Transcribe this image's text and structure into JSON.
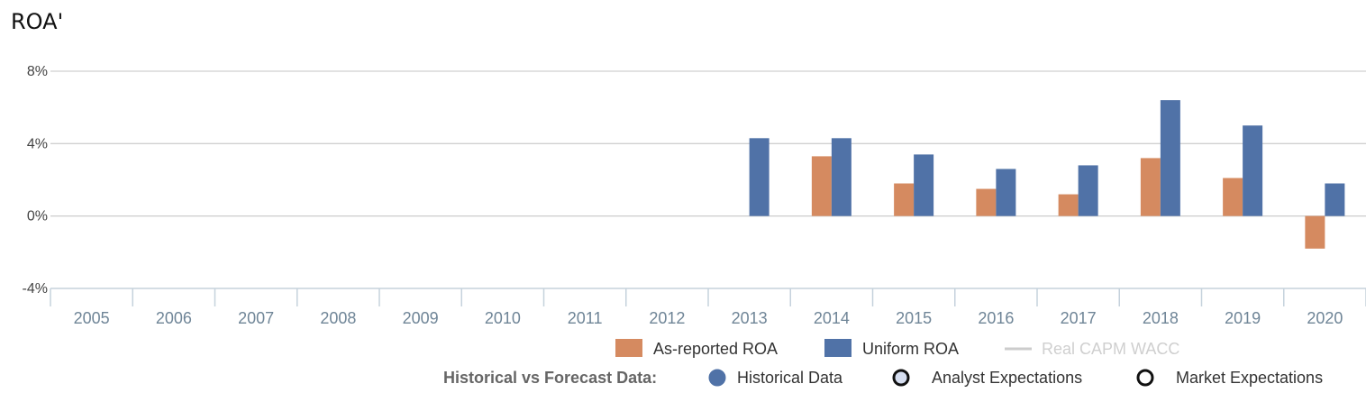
{
  "title": "ROA'",
  "chart_data": {
    "type": "bar",
    "title": "ROA'",
    "categories": [
      "2005",
      "2006",
      "2007",
      "2008",
      "2009",
      "2010",
      "2011",
      "2012",
      "2013",
      "2014",
      "2015",
      "2016",
      "2017",
      "2018",
      "2019",
      "2020"
    ],
    "series": [
      {
        "name": "As-reported ROA",
        "color": "#d58a60",
        "values": [
          null,
          null,
          null,
          null,
          null,
          null,
          null,
          null,
          null,
          3.3,
          1.8,
          1.5,
          1.2,
          3.2,
          2.1,
          -1.8
        ]
      },
      {
        "name": "Uniform ROA",
        "color": "#5072a7",
        "values": [
          null,
          null,
          null,
          null,
          null,
          null,
          null,
          null,
          4.3,
          4.3,
          3.4,
          2.6,
          2.8,
          6.4,
          5.0,
          1.8
        ]
      }
    ],
    "line_series": [
      {
        "name": "Real CAPM WACC",
        "color": "#cccccc",
        "values": []
      }
    ],
    "y_ticks": [
      {
        "value": 8,
        "label": "8%"
      },
      {
        "value": 4,
        "label": "4%"
      },
      {
        "value": 0,
        "label": "0%"
      },
      {
        "value": -4,
        "label": "-4%"
      }
    ],
    "ylim": [
      -4,
      8
    ],
    "grid": true,
    "legend_position": "bottom-right"
  },
  "legend2": {
    "label": "Historical vs Forecast Data:",
    "items": [
      {
        "name": "Historical Data",
        "fill": "#5072a7",
        "stroke": "#5072a7"
      },
      {
        "name": "Analyst Expectations",
        "fill": "#d6def0",
        "stroke": "#111111"
      },
      {
        "name": "Market Expectations",
        "fill": "#ffffff",
        "stroke": "#111111"
      }
    ]
  }
}
